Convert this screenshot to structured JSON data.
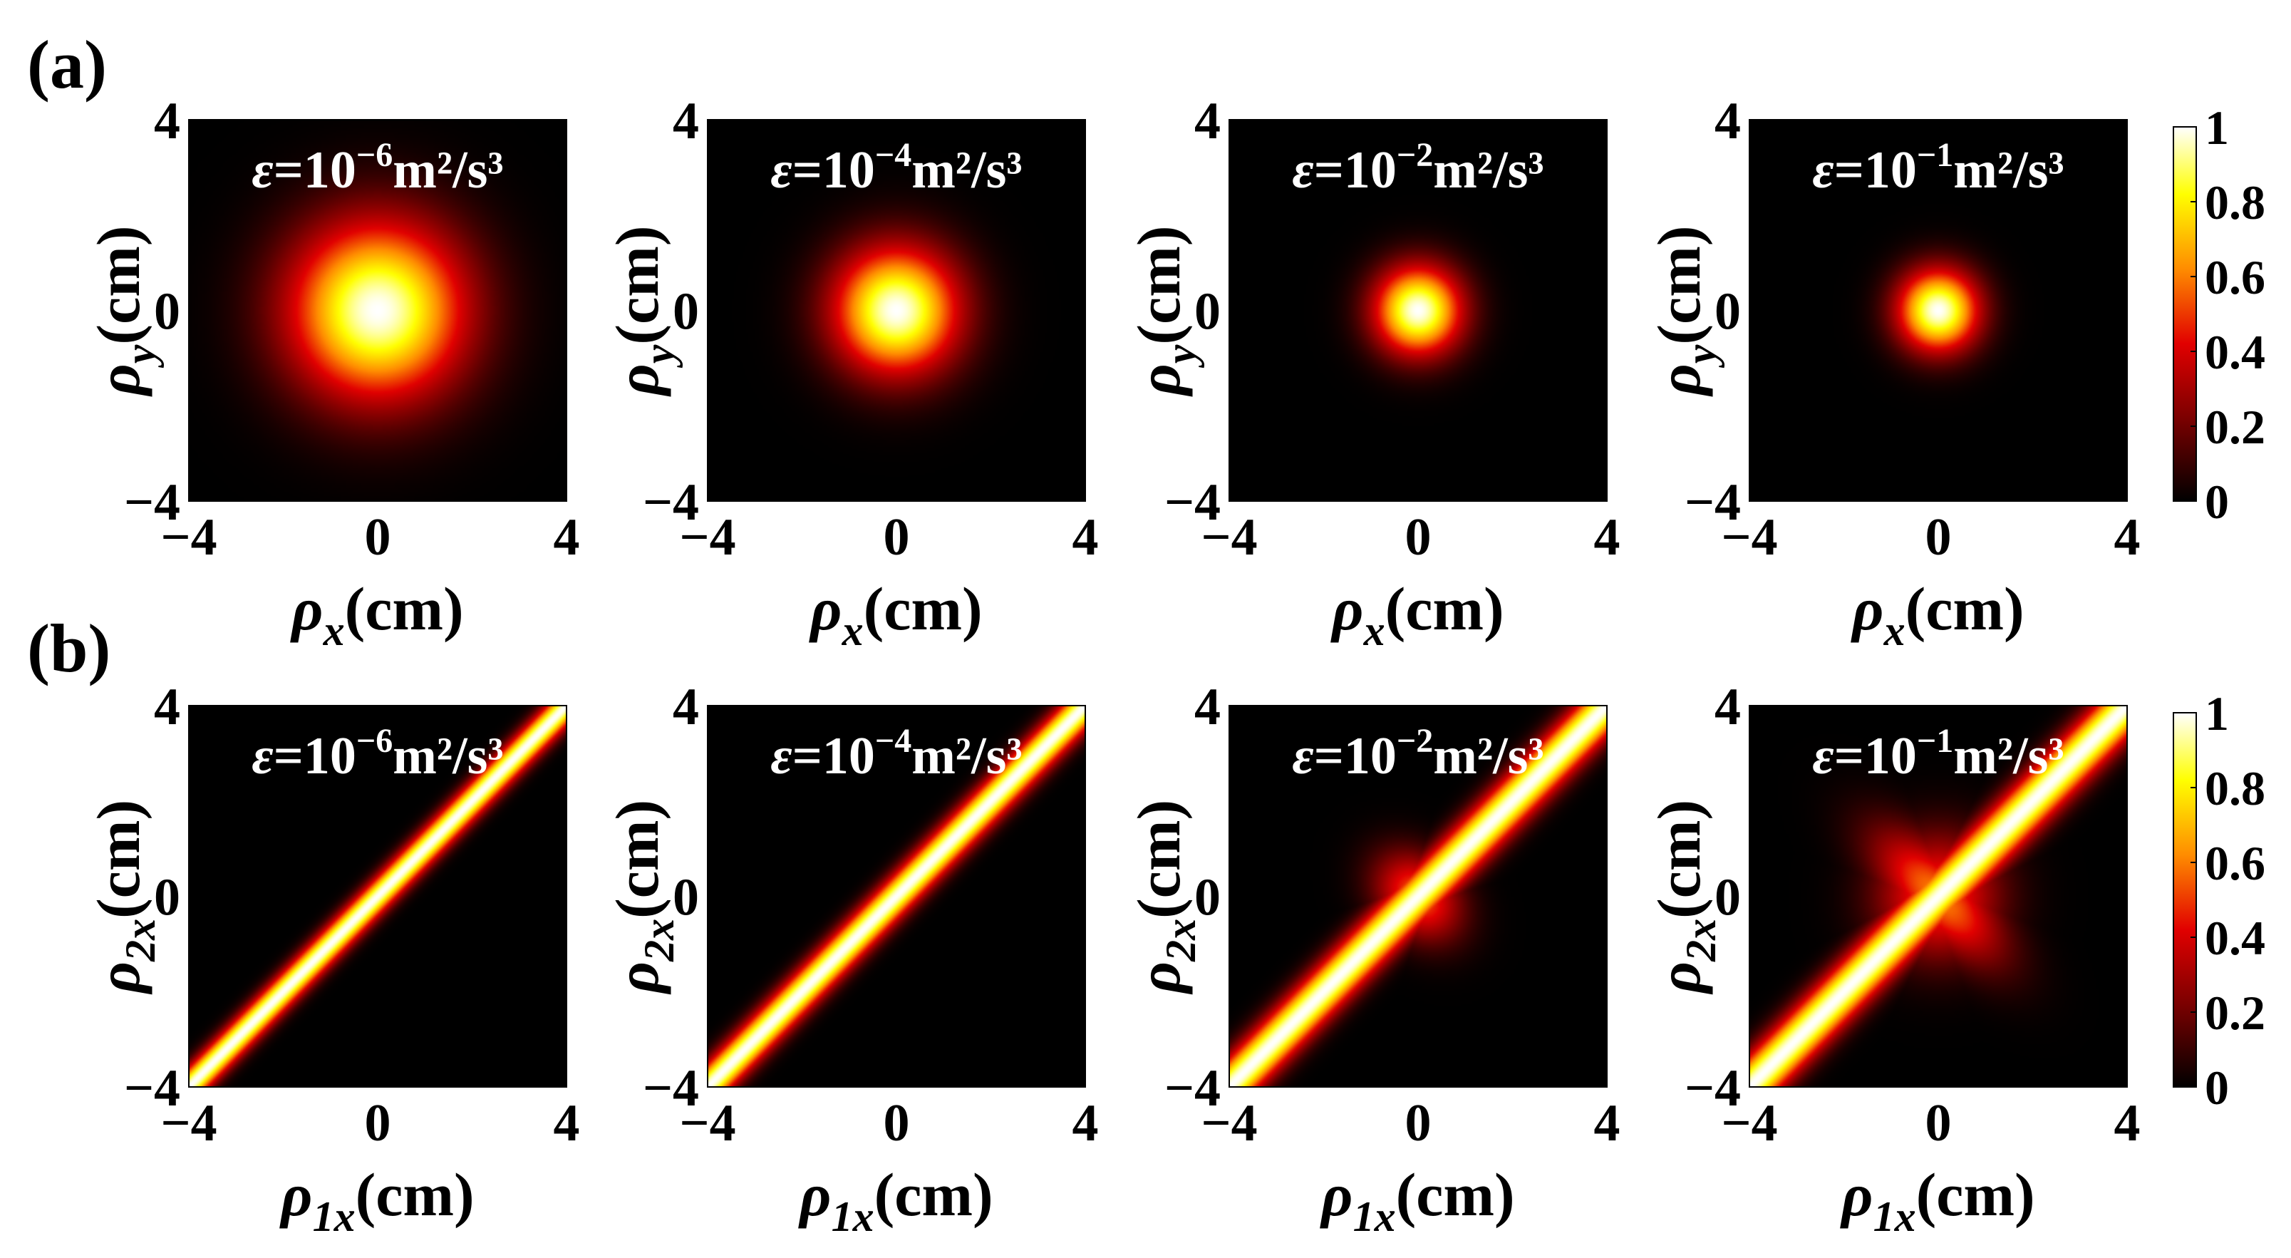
{
  "figure": {
    "panel_labels": [
      "(a)",
      "(b)"
    ],
    "colorbar_ticks": [
      "0",
      "0.2",
      "0.4",
      "0.6",
      "0.8",
      "1"
    ],
    "colormap": [
      "#000000",
      "#7a0000",
      "#e10000",
      "#ff8c00",
      "#ffff00",
      "#ffffff"
    ],
    "rows": [
      {
        "label": "(a)",
        "xlabel": {
          "sym": "ρ",
          "sub": "x",
          "unit": "(cm)"
        },
        "ylabel": {
          "sym": "ρ",
          "sub": "y",
          "unit": "(cm)"
        },
        "panels": [
          {
            "eps_exp": "−6",
            "title_pre": "=10",
            "title_post": "m²/s³"
          },
          {
            "eps_exp": "−4",
            "title_pre": "=10",
            "title_post": "m²/s³"
          },
          {
            "eps_exp": "−2",
            "title_pre": "=10",
            "title_post": "m²/s³"
          },
          {
            "eps_exp": "−1",
            "title_pre": "=10",
            "title_post": "m²/s³"
          }
        ]
      },
      {
        "label": "(b)",
        "xlabel": {
          "sym": "ρ",
          "sub": "1x",
          "unit": "(cm)"
        },
        "ylabel": {
          "sym": "ρ",
          "sub": "2x",
          "unit": "(cm)"
        },
        "panels": [
          {
            "eps_exp": "−6",
            "title_pre": "=10",
            "title_post": "m²/s³"
          },
          {
            "eps_exp": "−4",
            "title_pre": "=10",
            "title_post": "m²/s³"
          },
          {
            "eps_exp": "−2",
            "title_pre": "=10",
            "title_post": "m²/s³"
          },
          {
            "eps_exp": "−1",
            "title_pre": "=10",
            "title_post": "m²/s³"
          }
        ]
      }
    ]
  },
  "chart_data": [
    {
      "type": "heatmap",
      "row": "a",
      "epsilon": "10^-6 m^2/s^3",
      "shape": "gaussian-spot",
      "peak": [
        0,
        0
      ],
      "peak_value": 1,
      "spot_width_cm": 1.4,
      "xlim": [
        -4,
        4
      ],
      "ylim": [
        -4,
        4
      ],
      "xticks": [
        "−4",
        "0",
        "4"
      ],
      "yticks": [
        "−4",
        "0",
        "4"
      ],
      "xlabel": "ρx(cm)",
      "ylabel": "ρy(cm)",
      "zlim": [
        0,
        1
      ]
    },
    {
      "type": "heatmap",
      "row": "a",
      "epsilon": "10^-4 m^2/s^3",
      "shape": "gaussian-spot",
      "peak": [
        0,
        0
      ],
      "peak_value": 1,
      "spot_width_cm": 1.0,
      "xlim": [
        -4,
        4
      ],
      "ylim": [
        -4,
        4
      ],
      "xticks": [
        "−4",
        "0",
        "4"
      ],
      "yticks": [
        "−4",
        "0",
        "4"
      ],
      "xlabel": "ρx(cm)",
      "ylabel": "ρy(cm)",
      "zlim": [
        0,
        1
      ]
    },
    {
      "type": "heatmap",
      "row": "a",
      "epsilon": "10^-2 m^2/s^3",
      "shape": "gaussian-spot",
      "peak": [
        0,
        0
      ],
      "peak_value": 1,
      "spot_width_cm": 0.7,
      "xlim": [
        -4,
        4
      ],
      "ylim": [
        -4,
        4
      ],
      "xticks": [
        "−4",
        "0",
        "4"
      ],
      "yticks": [
        "−4",
        "0",
        "4"
      ],
      "xlabel": "ρx(cm)",
      "ylabel": "ρy(cm)",
      "zlim": [
        0,
        1
      ]
    },
    {
      "type": "heatmap",
      "row": "a",
      "epsilon": "10^-1 m^2/s^3",
      "shape": "gaussian-spot",
      "peak": [
        0,
        0
      ],
      "peak_value": 1,
      "spot_width_cm": 0.65,
      "xlim": [
        -4,
        4
      ],
      "ylim": [
        -4,
        4
      ],
      "xticks": [
        "−4",
        "0",
        "4"
      ],
      "yticks": [
        "−4",
        "0",
        "4"
      ],
      "xlabel": "ρx(cm)",
      "ylabel": "ρy(cm)",
      "zlim": [
        0,
        1
      ]
    },
    {
      "type": "heatmap",
      "row": "b",
      "epsilon": "10^-6 m^2/s^3",
      "shape": "diagonal-line",
      "line": "ρ2x = ρ1x",
      "band_width_cm": 0.5,
      "cross_lobes": 0,
      "xlim": [
        -4,
        4
      ],
      "ylim": [
        -4,
        4
      ],
      "xticks": [
        "−4",
        "0",
        "4"
      ],
      "yticks": [
        "−4",
        "0",
        "4"
      ],
      "xlabel": "ρ1x(cm)",
      "ylabel": "ρ2x(cm)",
      "zlim": [
        0,
        1
      ]
    },
    {
      "type": "heatmap",
      "row": "b",
      "epsilon": "10^-4 m^2/s^3",
      "shape": "diagonal-line",
      "line": "ρ2x = ρ1x",
      "band_width_cm": 0.6,
      "cross_lobes": 0,
      "xlim": [
        -4,
        4
      ],
      "ylim": [
        -4,
        4
      ],
      "xticks": [
        "−4",
        "0",
        "4"
      ],
      "yticks": [
        "−4",
        "0",
        "4"
      ],
      "xlabel": "ρ1x(cm)",
      "ylabel": "ρ2x(cm)",
      "zlim": [
        0,
        1
      ]
    },
    {
      "type": "heatmap",
      "row": "b",
      "epsilon": "10^-2 m^2/s^3",
      "shape": "diagonal-line-with-cross",
      "line": "ρ2x = ρ1x",
      "band_width_cm": 0.75,
      "cross_lobes": 0.55,
      "cross_extent_cm": 1.6,
      "xlim": [
        -4,
        4
      ],
      "ylim": [
        -4,
        4
      ],
      "xticks": [
        "−4",
        "0",
        "4"
      ],
      "yticks": [
        "−4",
        "0",
        "4"
      ],
      "xlabel": "ρ1x(cm)",
      "ylabel": "ρ2x(cm)",
      "zlim": [
        0,
        1
      ]
    },
    {
      "type": "heatmap",
      "row": "b",
      "epsilon": "10^-1 m^2/s^3",
      "shape": "diagonal-line-with-cross",
      "line": "ρ2x = ρ1x",
      "band_width_cm": 0.8,
      "cross_lobes": 0.6,
      "cross_extent_cm": 2.7,
      "xlim": [
        -4,
        4
      ],
      "ylim": [
        -4,
        4
      ],
      "xticks": [
        "−4",
        "0",
        "4"
      ],
      "yticks": [
        "−4",
        "0",
        "4"
      ],
      "xlabel": "ρ1x(cm)",
      "ylabel": "ρ2x(cm)",
      "zlim": [
        0,
        1
      ]
    }
  ]
}
